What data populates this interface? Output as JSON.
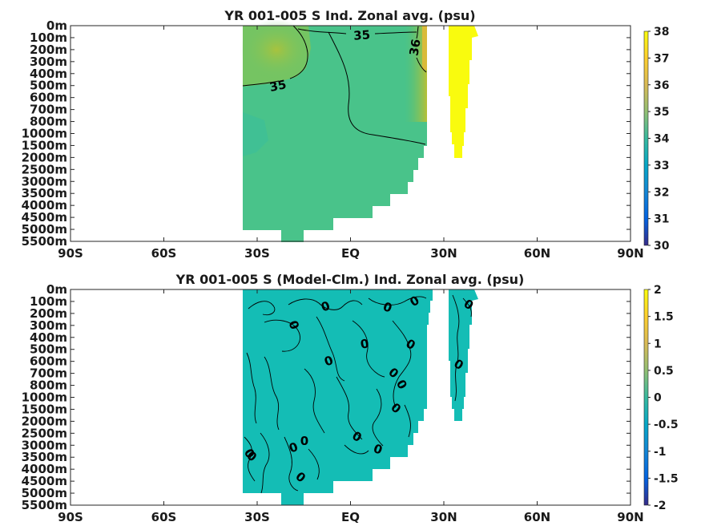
{
  "chart_data": [
    {
      "type": "heatmap",
      "title": "YR 001-005 S Ind. Zonal avg. (psu)",
      "x_ticks": [
        "90S",
        "60S",
        "30S",
        "EQ",
        "30N",
        "60N",
        "90N"
      ],
      "x_range": [
        -90,
        90
      ],
      "y_ticks": [
        "0m",
        "100m",
        "200m",
        "300m",
        "400m",
        "500m",
        "600m",
        "700m",
        "800m",
        "1000m",
        "1500m",
        "2000m",
        "2500m",
        "3000m",
        "3500m",
        "4000m",
        "4500m",
        "5000m",
        "5500m"
      ],
      "y_axis": "depth, reversed, evenly spaced labelled levels",
      "colorbar": {
        "ticks": [
          "38",
          "37",
          "36",
          "35",
          "34",
          "33",
          "32",
          "31",
          "30"
        ],
        "range": [
          30,
          38
        ]
      },
      "colormap": "parula",
      "contour_labels": [
        "35",
        "36",
        "35"
      ],
      "grid": false
    },
    {
      "type": "heatmap",
      "title": "YR 001-005 S (Model-Clm.) Ind. Zonal avg. (psu)",
      "x_ticks": [
        "90S",
        "60S",
        "30S",
        "EQ",
        "30N",
        "60N",
        "90N"
      ],
      "x_range": [
        -90,
        90
      ],
      "y_ticks": [
        "0m",
        "100m",
        "200m",
        "300m",
        "400m",
        "500m",
        "600m",
        "700m",
        "800m",
        "1000m",
        "1500m",
        "2000m",
        "2500m",
        "3000m",
        "3500m",
        "4000m",
        "4500m",
        "5000m",
        "5500m"
      ],
      "y_axis": "depth, reversed, evenly spaced labelled levels",
      "colorbar": {
        "ticks": [
          "2",
          "1.5",
          "1",
          "0.5",
          "0",
          "-0.5",
          "-1",
          "-1.5",
          "-2"
        ],
        "range": [
          -2,
          2
        ]
      },
      "colormap": "parula",
      "contour_labels": [
        "0",
        "0",
        "0",
        "0",
        "0",
        "0",
        "0",
        "0",
        "0",
        "0",
        "0",
        "0",
        "0",
        "0",
        "0",
        "0",
        "0",
        "0",
        "0"
      ],
      "grid": false
    }
  ]
}
